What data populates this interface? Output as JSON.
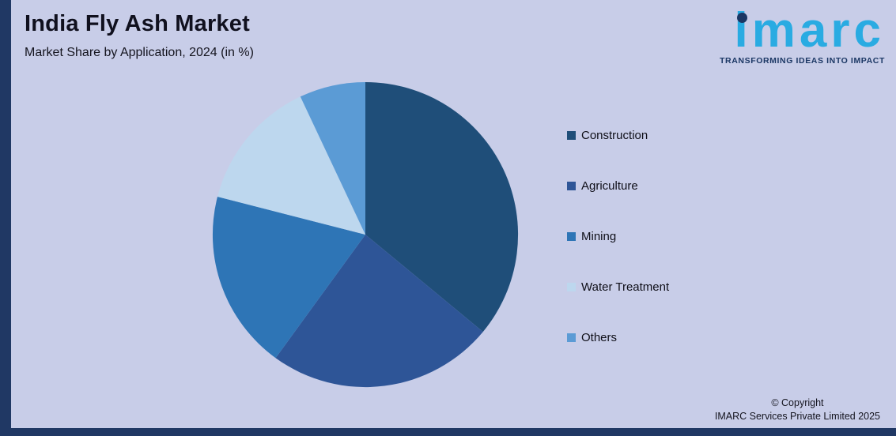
{
  "chart_data": {
    "type": "pie",
    "title": "India Fly Ash Market",
    "subtitle": "Market Share by Application, 2024 (in %)",
    "start_angle_deg": 0,
    "direction": "clockwise",
    "legend_position": "right",
    "data_labels": false,
    "slices": [
      {
        "label": "Construction",
        "value": 36,
        "color": "#1f4e79"
      },
      {
        "label": "Agriculture",
        "value": 24,
        "color": "#2e5597"
      },
      {
        "label": "Mining",
        "value": 19,
        "color": "#2e75b6"
      },
      {
        "label": "Water Treatment",
        "value": 14,
        "color": "#bdd7ee"
      },
      {
        "label": "Others",
        "value": 7,
        "color": "#5b9bd5"
      }
    ]
  },
  "logo": {
    "text": "imarc",
    "tagline": "TRANSFORMING IDEAS INTO IMPACT",
    "text_color": "#29abe2",
    "dot_color": "#1b3764",
    "tagline_color": "#1b3764"
  },
  "footer": {
    "copyright_line1": "© Copyright",
    "copyright_line2": "IMARC Services Private Limited 2025"
  },
  "colors": {
    "background": "#c8cde8",
    "frame": "#203864"
  }
}
